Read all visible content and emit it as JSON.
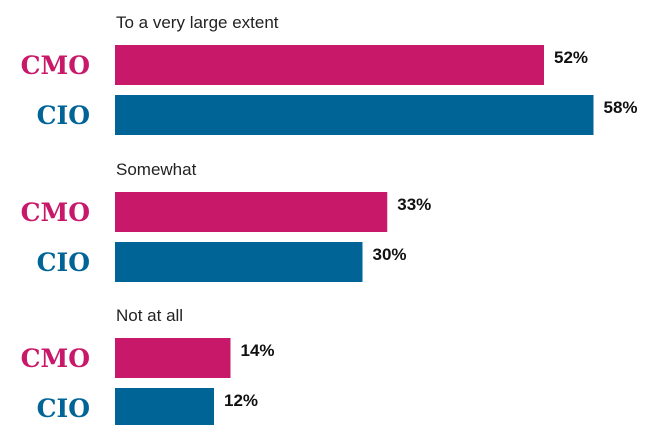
{
  "chart_data": {
    "type": "bar",
    "orientation": "horizontal",
    "categories": [
      "To a very large extent",
      "Somewhat",
      "Not at all"
    ],
    "series": [
      {
        "name": "CMO",
        "values": [
          52,
          33,
          14
        ],
        "color": "#c8186a"
      },
      {
        "name": "CIO",
        "values": [
          58,
          30,
          12
        ],
        "color": "#006496"
      }
    ],
    "value_suffix": "%",
    "xlim": [
      0,
      60
    ],
    "grid": false,
    "legend": "none"
  }
}
